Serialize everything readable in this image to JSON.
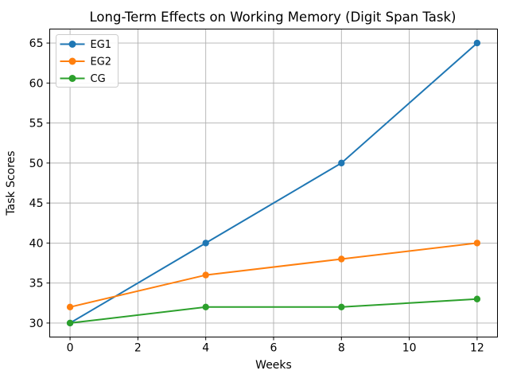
{
  "chart_data": {
    "type": "line",
    "title": "Long-Term Effects on Working Memory (Digit Span Task)",
    "xlabel": "Weeks",
    "ylabel": "Task Scores",
    "x": [
      0,
      4,
      8,
      12
    ],
    "series": [
      {
        "name": "EG1",
        "color": "#1f77b4",
        "values": [
          30,
          40,
          50,
          65
        ]
      },
      {
        "name": "EG2",
        "color": "#ff7f0e",
        "values": [
          32,
          36,
          38,
          40
        ]
      },
      {
        "name": "CG",
        "color": "#2ca02c",
        "values": [
          30,
          32,
          32,
          33
        ]
      }
    ],
    "xticks": [
      0,
      2,
      4,
      6,
      8,
      10,
      12
    ],
    "yticks": [
      30,
      35,
      40,
      45,
      50,
      55,
      60,
      65
    ],
    "xlim": [
      -0.6,
      12.6
    ],
    "ylim": [
      28.25,
      66.75
    ],
    "grid": true,
    "legend_position": "upper left",
    "marker": "circle",
    "line_width": 2,
    "marker_radius": 4.2
  },
  "colors": {
    "background": "#ffffff",
    "grid": "#b0b0b0",
    "spine": "#000000",
    "text": "#000000",
    "legend_border": "#cccccc",
    "legend_background": "#ffffff"
  }
}
